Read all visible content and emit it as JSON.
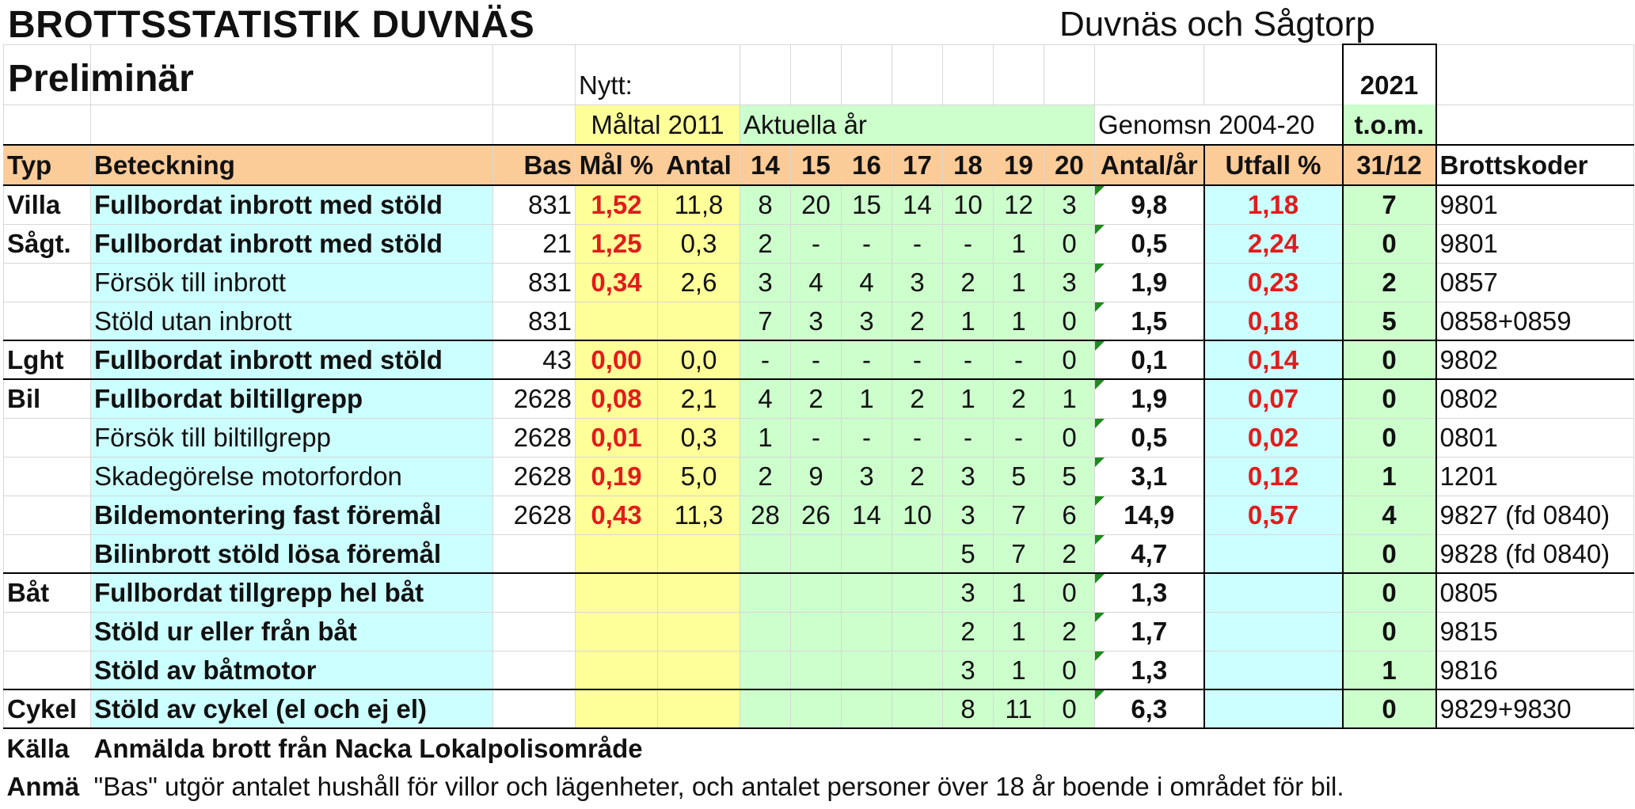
{
  "title": "BROTTSSTATISTIK DUVNÄS",
  "subtitle": "Preliminär",
  "area": "Duvnäs och Sågtorp",
  "nytt_label": "Nytt:",
  "year_label": "2021",
  "headers": {
    "maltal": "Måltal 2011",
    "aktuella": "Aktuella år",
    "genomsn": "Genomsn 2004-20",
    "tom": "t.o.m.",
    "typ": "Typ",
    "beteckning": "Beteckning",
    "bas": "Bas",
    "malpct": "Mål %",
    "antal": "Antal",
    "years": [
      "14",
      "15",
      "16",
      "17",
      "18",
      "19",
      "20"
    ],
    "antal_ar": "Antal/år",
    "utfall": "Utfall %",
    "date": "31/12",
    "brottskoder": "Brottskoder"
  },
  "rows": [
    {
      "typ": "Villa",
      "beteckning": "Fullbordat inbrott med stöld",
      "bold": true,
      "bas": "831",
      "malpct": "1,52",
      "antal": "11,8",
      "years": [
        "8",
        "20",
        "15",
        "14",
        "10",
        "12",
        "3"
      ],
      "antal_ar": "9,8",
      "utfall": "1,18",
      "ytd": "7",
      "kod": "9801"
    },
    {
      "typ": "Sågt.",
      "beteckning": "Fullbordat inbrott med stöld",
      "bold": true,
      "bas": "21",
      "malpct": "1,25",
      "antal": "0,3",
      "years": [
        "2",
        "-",
        "-",
        "-",
        "-",
        "1",
        "0"
      ],
      "antal_ar": "0,5",
      "utfall": "2,24",
      "ytd": "0",
      "kod": "9801"
    },
    {
      "typ": "",
      "beteckning": "Försök till inbrott",
      "bold": false,
      "bas": "831",
      "malpct": "0,34",
      "antal": "2,6",
      "years": [
        "3",
        "4",
        "4",
        "3",
        "2",
        "1",
        "3"
      ],
      "antal_ar": "1,9",
      "utfall": "0,23",
      "ytd": "2",
      "kod": "0857"
    },
    {
      "typ": "",
      "beteckning": "Stöld utan inbrott",
      "bold": false,
      "bas": "831",
      "malpct": "",
      "antal": "",
      "years": [
        "7",
        "3",
        "3",
        "2",
        "1",
        "1",
        "0"
      ],
      "antal_ar": "1,5",
      "utfall": "0,18",
      "ytd": "5",
      "kod": "0858+0859"
    },
    {
      "typ": "Lght",
      "beteckning": "Fullbordat inbrott med stöld",
      "bold": true,
      "bas": "43",
      "malpct": "0,00",
      "antal": "0,0",
      "years": [
        "-",
        "-",
        "-",
        "-",
        "-",
        "-",
        "0"
      ],
      "antal_ar": "0,1",
      "utfall": "0,14",
      "ytd": "0",
      "kod": "9802"
    },
    {
      "typ": "Bil",
      "beteckning": "Fullbordat biltillgrepp",
      "bold": true,
      "bas": "2628",
      "malpct": "0,08",
      "antal": "2,1",
      "years": [
        "4",
        "2",
        "1",
        "2",
        "1",
        "2",
        "1"
      ],
      "antal_ar": "1,9",
      "utfall": "0,07",
      "ytd": "0",
      "kod": "0802"
    },
    {
      "typ": "",
      "beteckning": "Försök till biltillgrepp",
      "bold": false,
      "bas": "2628",
      "malpct": "0,01",
      "antal": "0,3",
      "years": [
        "1",
        "-",
        "-",
        "-",
        "-",
        "-",
        "0"
      ],
      "antal_ar": "0,5",
      "utfall": "0,02",
      "ytd": "0",
      "kod": "0801"
    },
    {
      "typ": "",
      "beteckning": "Skadegörelse motorfordon",
      "bold": false,
      "bas": "2628",
      "malpct": "0,19",
      "antal": "5,0",
      "years": [
        "2",
        "9",
        "3",
        "2",
        "3",
        "5",
        "5"
      ],
      "antal_ar": "3,1",
      "utfall": "0,12",
      "ytd": "1",
      "kod": "1201"
    },
    {
      "typ": "",
      "beteckning": "Bildemontering fast föremål",
      "bold": true,
      "bas": "2628",
      "malpct": "0,43",
      "antal": "11,3",
      "years": [
        "28",
        "26",
        "14",
        "10",
        "3",
        "7",
        "6"
      ],
      "antal_ar": "14,9",
      "utfall": "0,57",
      "ytd": "4",
      "kod": "9827 (fd 0840)"
    },
    {
      "typ": "",
      "beteckning": "Bilinbrott stöld lösa föremål",
      "bold": true,
      "bas": "",
      "malpct": "",
      "antal": "",
      "years": [
        "",
        "",
        "",
        "",
        "5",
        "7",
        "2"
      ],
      "antal_ar": "4,7",
      "utfall": "",
      "ytd": "0",
      "kod": "9828 (fd 0840)"
    },
    {
      "typ": "Båt",
      "beteckning": "Fullbordat tillgrepp hel båt",
      "bold": true,
      "bas": "",
      "malpct": "",
      "antal": "",
      "years": [
        "",
        "",
        "",
        "",
        "3",
        "1",
        "0"
      ],
      "antal_ar": "1,3",
      "utfall": "",
      "ytd": "0",
      "kod": "0805"
    },
    {
      "typ": "",
      "beteckning": "Stöld ur eller från båt",
      "bold": true,
      "bas": "",
      "malpct": "",
      "antal": "",
      "years": [
        "",
        "",
        "",
        "",
        "2",
        "1",
        "2"
      ],
      "antal_ar": "1,7",
      "utfall": "",
      "ytd": "0",
      "kod": "9815"
    },
    {
      "typ": "",
      "beteckning": "Stöld av båtmotor",
      "bold": true,
      "bas": "",
      "malpct": "",
      "antal": "",
      "years": [
        "",
        "",
        "",
        "",
        "3",
        "1",
        "0"
      ],
      "antal_ar": "1,3",
      "utfall": "",
      "ytd": "1",
      "kod": "9816"
    },
    {
      "typ": "Cykel",
      "beteckning": "Stöld av cykel (el och ej el)",
      "bold": true,
      "bas": "",
      "malpct": "",
      "antal": "",
      "years": [
        "",
        "",
        "",
        "",
        "8",
        "11",
        "0"
      ],
      "antal_ar": "6,3",
      "utfall": "",
      "ytd": "0",
      "kod": "9829+9830"
    }
  ],
  "footer": {
    "kalla_label": "Källa",
    "kalla_text": "Anmälda brott från Nacka Lokalpolisområde",
    "anm_label": "Anmä",
    "anm_text": "\"Bas\" utgör antalet hushåll för villor och lägenheter, och antalet personer över 18 år boende i området för bil."
  }
}
